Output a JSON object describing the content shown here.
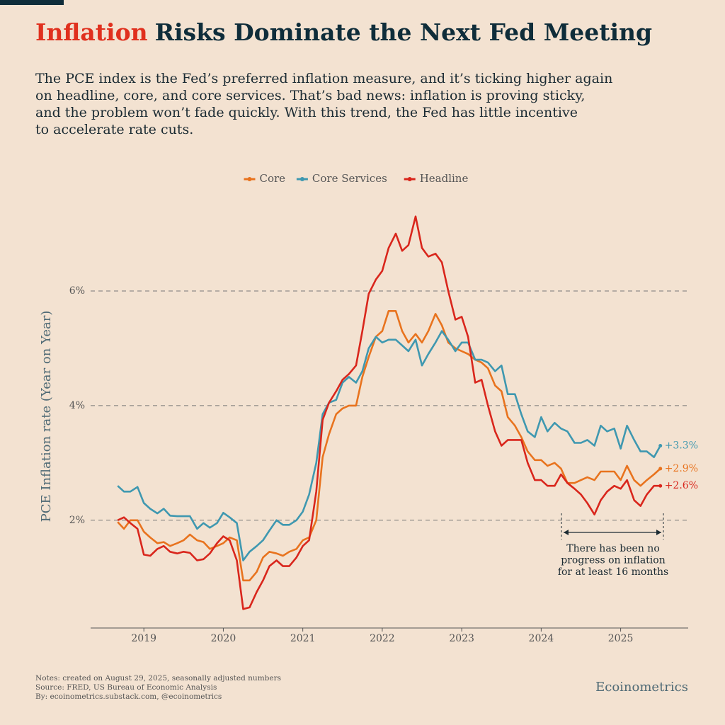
{
  "chart_data": {
    "type": "line",
    "title_highlight": "Inflation",
    "title": "Risks Dominate the Next Fed Meeting",
    "subtitle": [
      "The PCE index is the Fed’s preferred inflation measure, and it’s ticking higher again",
      "on headline, core, and core services. That’s bad news: inflation is proving sticky,",
      "and the problem won’t fade quickly. With this trend, the Fed has little incentive",
      "to accelerate rate cuts."
    ],
    "y_label": "PCE Inflation rate (Year on Year)",
    "annotation": [
      "There has been no",
      "progress on inflation",
      "for at least 16 months"
    ],
    "notes": [
      "Notes: created on August 29, 2025, seasonally adjusted numbers",
      "Source: FRED, US Bureau of Economic Analysis",
      "By: ecoinometrics.substack.com, @ecoinometrics"
    ],
    "brand": "Ecoinometrics",
    "grid": true,
    "legend": "top",
    "xlim": [
      2018.33,
      2025.85
    ],
    "xticks": [
      2019,
      2020,
      2021,
      2022,
      2023,
      2024,
      2025
    ],
    "ylim": [
      0.12,
      7.5
    ],
    "yticks": [
      {
        "value": 2,
        "label": "2%"
      },
      {
        "value": 4,
        "label": "4%"
      },
      {
        "value": 6,
        "label": "6%"
      }
    ],
    "x": [
      2018.67,
      2018.75,
      2018.83,
      2018.92,
      2019.0,
      2019.08,
      2019.17,
      2019.25,
      2019.33,
      2019.42,
      2019.5,
      2019.58,
      2019.67,
      2019.75,
      2019.83,
      2019.92,
      2020.0,
      2020.08,
      2020.17,
      2020.25,
      2020.33,
      2020.42,
      2020.5,
      2020.58,
      2020.67,
      2020.75,
      2020.83,
      2020.92,
      2021.0,
      2021.08,
      2021.17,
      2021.25,
      2021.33,
      2021.42,
      2021.5,
      2021.58,
      2021.67,
      2021.75,
      2021.83,
      2021.92,
      2022.0,
      2022.08,
      2022.17,
      2022.25,
      2022.33,
      2022.42,
      2022.5,
      2022.58,
      2022.67,
      2022.75,
      2022.83,
      2022.92,
      2023.0,
      2023.08,
      2023.17,
      2023.25,
      2023.33,
      2023.42,
      2023.5,
      2023.58,
      2023.67,
      2023.75,
      2023.83,
      2023.92,
      2024.0,
      2024.08,
      2024.17,
      2024.25,
      2024.33,
      2024.42,
      2024.5,
      2024.58,
      2024.67,
      2024.75,
      2024.83,
      2024.92,
      2025.0,
      2025.08,
      2025.17,
      2025.25,
      2025.33,
      2025.42,
      2025.5
    ],
    "series": [
      {
        "name": "Core",
        "color": "#e8731e",
        "last_label": "+2.9%",
        "values": [
          1.97,
          1.85,
          2.0,
          2.0,
          1.8,
          1.7,
          1.6,
          1.62,
          1.55,
          1.6,
          1.65,
          1.75,
          1.65,
          1.62,
          1.5,
          1.55,
          1.6,
          1.7,
          1.65,
          0.95,
          0.95,
          1.1,
          1.35,
          1.45,
          1.42,
          1.38,
          1.45,
          1.5,
          1.65,
          1.7,
          2.0,
          3.1,
          3.5,
          3.85,
          3.95,
          4.0,
          4.0,
          4.5,
          4.85,
          5.2,
          5.3,
          5.65,
          5.65,
          5.3,
          5.1,
          5.25,
          5.1,
          5.3,
          5.6,
          5.4,
          5.1,
          5.0,
          4.95,
          4.9,
          4.8,
          4.75,
          4.65,
          4.35,
          4.25,
          3.8,
          3.65,
          3.45,
          3.2,
          3.05,
          3.05,
          2.95,
          3.0,
          2.9,
          2.65,
          2.65,
          2.7,
          2.75,
          2.7,
          2.85,
          2.85,
          2.85,
          2.7,
          2.95,
          2.7,
          2.6,
          2.7,
          2.8,
          2.9
        ]
      },
      {
        "name": "Core Services",
        "color": "#3f98b0",
        "last_label": "+3.3%",
        "values": [
          2.6,
          2.5,
          2.5,
          2.58,
          2.3,
          2.2,
          2.12,
          2.2,
          2.08,
          2.07,
          2.07,
          2.07,
          1.85,
          1.95,
          1.87,
          1.95,
          2.13,
          2.05,
          1.95,
          1.3,
          1.45,
          1.55,
          1.65,
          1.82,
          2.0,
          1.92,
          1.92,
          2.0,
          2.15,
          2.45,
          3.0,
          3.85,
          4.05,
          4.1,
          4.4,
          4.5,
          4.4,
          4.6,
          5.0,
          5.2,
          5.1,
          5.15,
          5.15,
          5.05,
          4.95,
          5.15,
          4.7,
          4.9,
          5.1,
          5.3,
          5.15,
          4.95,
          5.1,
          5.1,
          4.8,
          4.8,
          4.75,
          4.6,
          4.7,
          4.2,
          4.2,
          3.85,
          3.55,
          3.45,
          3.8,
          3.55,
          3.7,
          3.6,
          3.55,
          3.35,
          3.35,
          3.4,
          3.3,
          3.65,
          3.55,
          3.6,
          3.25,
          3.65,
          3.4,
          3.2,
          3.2,
          3.1,
          3.3
        ]
      },
      {
        "name": "Headline",
        "color": "#d9261c",
        "last_label": "+2.6%",
        "values": [
          2.0,
          2.05,
          1.95,
          1.85,
          1.4,
          1.38,
          1.5,
          1.55,
          1.45,
          1.42,
          1.45,
          1.43,
          1.3,
          1.32,
          1.42,
          1.6,
          1.72,
          1.65,
          1.3,
          0.45,
          0.48,
          0.75,
          0.95,
          1.2,
          1.3,
          1.2,
          1.2,
          1.35,
          1.55,
          1.65,
          2.5,
          3.75,
          4.05,
          4.25,
          4.45,
          4.55,
          4.7,
          5.3,
          5.95,
          6.2,
          6.35,
          6.75,
          7.0,
          6.7,
          6.8,
          7.3,
          6.75,
          6.6,
          6.65,
          6.5,
          6.0,
          5.5,
          5.55,
          5.2,
          4.4,
          4.45,
          4.0,
          3.55,
          3.3,
          3.4,
          3.4,
          3.4,
          3.0,
          2.7,
          2.7,
          2.6,
          2.6,
          2.8,
          2.65,
          2.55,
          2.45,
          2.3,
          2.1,
          2.35,
          2.5,
          2.6,
          2.55,
          2.7,
          2.35,
          2.25,
          2.45,
          2.6,
          2.6
        ]
      }
    ]
  }
}
